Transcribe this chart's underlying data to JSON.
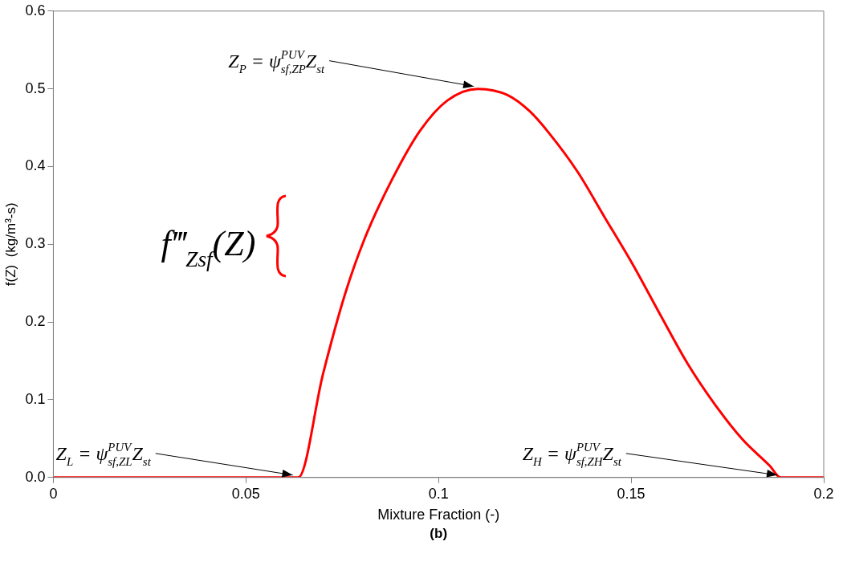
{
  "chart_data": {
    "type": "line",
    "xlabel": "Mixture Fraction (-)",
    "ylabel": "f(Z)  (kg/m³-s)",
    "xlim": [
      0,
      0.2
    ],
    "xticks": [
      0,
      0.05,
      0.1,
      0.15,
      0.2
    ],
    "ylim": [
      0,
      0.6
    ],
    "yticks": [
      {
        "value": 0,
        "label": "0.0"
      },
      0.1,
      0.2,
      0.3,
      0.4,
      0.5,
      0.6
    ],
    "marker": "none",
    "line_style": "solid",
    "legend": "left",
    "series": [
      {
        "name": "f‴$_{Zsf}$(Z)",
        "color": "#ff0000",
        "x": [
          0,
          0.0636,
          0.07,
          0.0758,
          0.0808,
          0.0879,
          0.0952,
          0.1023,
          0.1102,
          0.1179,
          0.1237,
          0.1287,
          0.136,
          0.1431,
          0.1502,
          0.1575,
          0.1646,
          0.1716,
          0.1789,
          0.186,
          0.1888,
          0.2
        ],
        "values": [
          0,
          0,
          0.133,
          0.237,
          0.307,
          0.383,
          0.446,
          0.485,
          0.5,
          0.492,
          0.471,
          0.443,
          0.394,
          0.335,
          0.276,
          0.21,
          0.147,
          0.095,
          0.049,
          0.015,
          0,
          0
        ]
      }
    ],
    "annotations": [
      {
        "text": "Z$_{P}$ = ψ$^{PUV}$$_{sf,ZP}$Z$_{st}$",
        "x": 0.11,
        "y": 0.5
      },
      {
        "text": "Z$_{L}$ = ψ$^{PUV}$$_{sf,ZL}$Z$_{st}$",
        "x": 0.063,
        "y": 0
      },
      {
        "text": "Z$_{H}$ = ψ$^{PUV}$$_{sf,ZH}$Z$_{st}$",
        "x": 0.1888,
        "y": 0
      },
      "(b)"
    ]
  }
}
